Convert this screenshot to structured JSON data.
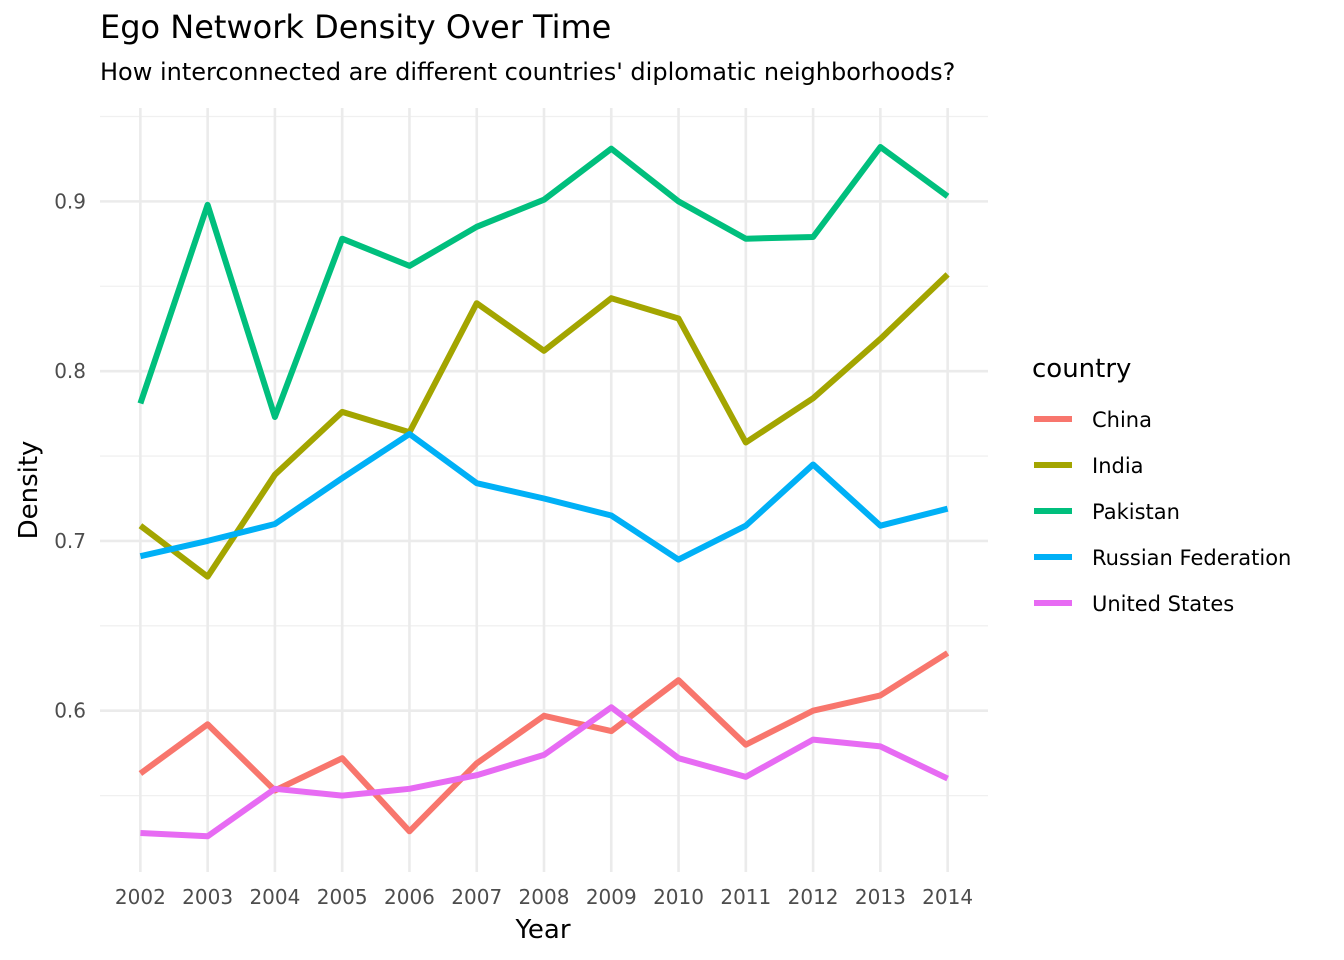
{
  "chart_data": {
    "type": "line",
    "title": "Ego Network Density Over Time",
    "subtitle": "How interconnected are different countries' diplomatic neighborhoods?",
    "xlabel": "Year",
    "ylabel": "Density",
    "x": [
      2002,
      2003,
      2004,
      2005,
      2006,
      2007,
      2008,
      2009,
      2010,
      2011,
      2012,
      2013,
      2014
    ],
    "ylim": [
      0.505,
      0.955
    ],
    "y_ticks": [
      0.6,
      0.7,
      0.8,
      0.9
    ],
    "y_tick_labels": [
      "0.6",
      "0.7",
      "0.8",
      "0.9"
    ],
    "grid": true,
    "legend": {
      "title": "country",
      "position": "right"
    },
    "series": [
      {
        "name": "China",
        "color": "#F8766D",
        "values": [
          0.563,
          0.592,
          0.553,
          0.572,
          0.529,
          0.569,
          0.597,
          0.588,
          0.618,
          0.58,
          0.6,
          0.609,
          0.634
        ]
      },
      {
        "name": "India",
        "color": "#A3A500",
        "values": [
          0.709,
          0.679,
          0.739,
          0.776,
          0.764,
          0.84,
          0.812,
          0.843,
          0.831,
          0.758,
          0.784,
          0.819,
          0.857
        ]
      },
      {
        "name": "Pakistan",
        "color": "#00BF7D",
        "values": [
          0.781,
          0.898,
          0.773,
          0.878,
          0.862,
          0.885,
          0.901,
          0.931,
          0.9,
          0.878,
          0.879,
          0.932,
          0.903
        ]
      },
      {
        "name": "Russian Federation",
        "color": "#00B0F6",
        "values": [
          0.691,
          0.7,
          0.71,
          0.737,
          0.763,
          0.734,
          0.725,
          0.715,
          0.689,
          0.709,
          0.745,
          0.709,
          0.719
        ]
      },
      {
        "name": "United States",
        "color": "#E76BF3",
        "values": [
          0.528,
          0.526,
          0.554,
          0.55,
          0.554,
          0.562,
          0.574,
          0.602,
          0.572,
          0.561,
          0.583,
          0.579,
          0.56
        ]
      }
    ]
  }
}
